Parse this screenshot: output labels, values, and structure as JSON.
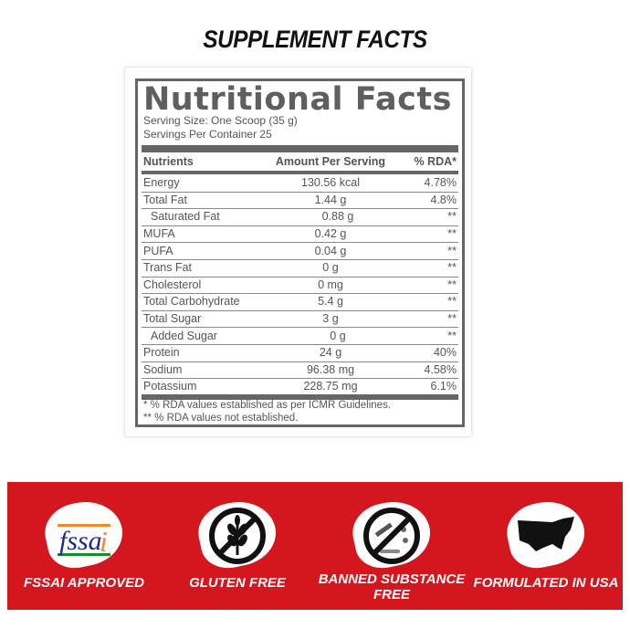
{
  "title": "SUPPLEMENT FACTS",
  "panel": {
    "heading": "Nutritional Facts",
    "serving_size": "Serving Size: One Scoop (35 g)",
    "servings_per_container": "Servings Per Container  25",
    "columns": [
      "Nutrients",
      "Amount Per Serving",
      "% RDA*"
    ],
    "rows": [
      {
        "name": "Energy",
        "amount": "130.56 kcal",
        "rda": "4.78%"
      },
      {
        "name": "Total Fat",
        "amount": "1.44 g",
        "rda": "4.8%"
      },
      {
        "name": "Saturated Fat",
        "amount": "0.88 g",
        "rda": "**"
      },
      {
        "name": "MUFA",
        "amount": "0.42 g",
        "rda": "**"
      },
      {
        "name": "PUFA",
        "amount": "0.04 g",
        "rda": "**"
      },
      {
        "name": "Trans Fat",
        "amount": "0 g",
        "rda": "**"
      },
      {
        "name": "Cholesterol",
        "amount": "0 mg",
        "rda": "**"
      },
      {
        "name": "Total Carbohydrate",
        "amount": "5.4 g",
        "rda": "**"
      },
      {
        "name": "Total Sugar",
        "amount": "3 g",
        "rda": "**"
      },
      {
        "name": "Added Sugar",
        "amount": "0 g",
        "rda": "**"
      },
      {
        "name": "Protein",
        "amount": "24 g",
        "rda": "40%"
      },
      {
        "name": "Sodium",
        "amount": "96.38 mg",
        "rda": "4.58%"
      },
      {
        "name": "Potassium",
        "amount": "228.75 mg",
        "rda": "6.1%"
      }
    ],
    "footnote1": "* % RDA values established as per ICMR Guidelines.",
    "footnote2": "** % RDA values not established."
  },
  "badges": [
    {
      "icon": "fssai-logo",
      "label": "FSSAI APPROVED",
      "logo_text": "fssai"
    },
    {
      "icon": "gluten-free-icon",
      "label": "GLUTEN FREE"
    },
    {
      "icon": "banned-substance-icon",
      "label": "BANNED SUBSTANCE FREE"
    },
    {
      "icon": "usa-map-icon",
      "label": "FORMULATED IN USA"
    }
  ],
  "colors": {
    "banner": "#d4161f",
    "panel_gray": "#666666"
  }
}
